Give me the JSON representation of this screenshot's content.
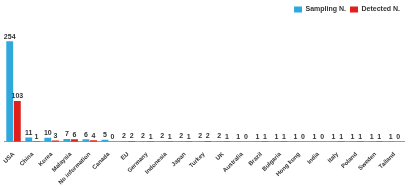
{
  "chart_data": {
    "type": "bar",
    "categories": [
      "USA",
      "China",
      "Korea",
      "Malaysia",
      "No information",
      "Canada",
      "EU",
      "Germany",
      "Indonesia",
      "Japan",
      "Turkey",
      "UK",
      "Australia",
      "Brazil",
      "Bulgaria",
      "Hong kong",
      "India",
      "Italy",
      "Poland",
      "Sweden",
      "Tailand"
    ],
    "series": [
      {
        "name": "Sampling N.",
        "color": "#2fa8dc",
        "values": [
          254,
          11,
          10,
          7,
          6,
          5,
          2,
          2,
          2,
          2,
          2,
          2,
          1,
          1,
          1,
          1,
          1,
          1,
          1,
          1,
          1
        ]
      },
      {
        "name": "Detected N.",
        "color": "#e0201b",
        "values": [
          103,
          1,
          3,
          6,
          4,
          0,
          2,
          1,
          1,
          1,
          2,
          1,
          0,
          1,
          1,
          0,
          0,
          1,
          1,
          1,
          0
        ]
      }
    ],
    "grid": false,
    "legend": "top-right",
    "data_labels": true,
    "tick_labels": "x"
  }
}
